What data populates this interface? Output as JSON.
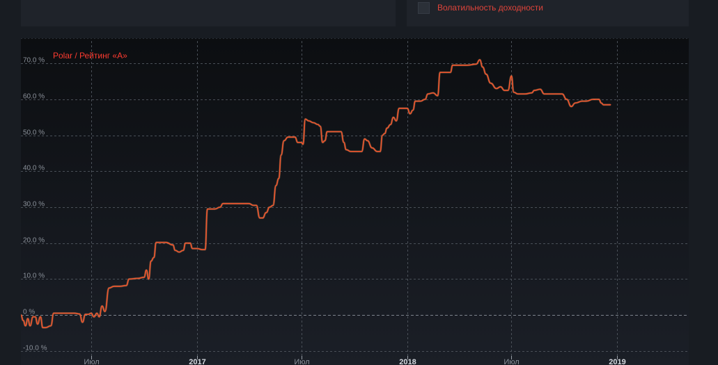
{
  "legend_panel": {
    "volatility_label": "Волатильность доходности"
  },
  "chart_data": {
    "type": "line",
    "title": "Polar / Рейтинг «А»",
    "xlabel": "",
    "ylabel": "",
    "ylim": [
      -11,
      77
    ],
    "y_ticks": [
      {
        "value": 70,
        "label": "70.0 %"
      },
      {
        "value": 60,
        "label": "60.0 %"
      },
      {
        "value": 50,
        "label": "50.0 %"
      },
      {
        "value": 40,
        "label": "40.0 %"
      },
      {
        "value": 30,
        "label": "30.0 %"
      },
      {
        "value": 20,
        "label": "20.0 %"
      },
      {
        "value": 10,
        "label": "10.0 %"
      },
      {
        "value": 0,
        "label": "0 %"
      },
      {
        "value": -10,
        "label": "-10.0 %"
      }
    ],
    "x_ticks": [
      {
        "date": "2016-07-01",
        "label": "Июл",
        "bold": false
      },
      {
        "date": "2017-01-01",
        "label": "2017",
        "bold": true
      },
      {
        "date": "2017-07-01",
        "label": "Июл",
        "bold": false
      },
      {
        "date": "2018-01-01",
        "label": "2018",
        "bold": true
      },
      {
        "date": "2018-07-01",
        "label": "Июл",
        "bold": false
      },
      {
        "date": "2019-01-01",
        "label": "2019",
        "bold": true
      }
    ],
    "x_range": [
      "2016-03-01",
      "2019-05-05"
    ],
    "grid": true,
    "colors": {
      "line": "#e8552e",
      "title": "#ff3b30",
      "grid": "#4a5058",
      "axis_text": "#8a9099"
    },
    "series": [
      {
        "name": "Polar / Рейтинг «А»",
        "points": [
          [
            "2016-03-01",
            0.0
          ],
          [
            "2016-03-05",
            -1.5
          ],
          [
            "2016-03-09",
            -3.0
          ],
          [
            "2016-03-13",
            -1.0
          ],
          [
            "2016-03-17",
            -3.0
          ],
          [
            "2016-03-22",
            -0.5
          ],
          [
            "2016-03-26",
            -0.5
          ],
          [
            "2016-03-30",
            -2.5
          ],
          [
            "2016-04-04",
            -0.5
          ],
          [
            "2016-04-08",
            -3.5
          ],
          [
            "2016-04-13",
            -3.5
          ],
          [
            "2016-04-22",
            -3.0
          ],
          [
            "2016-04-27",
            0.5
          ],
          [
            "2016-05-06",
            0.5
          ],
          [
            "2016-05-15",
            0.5
          ],
          [
            "2016-05-24",
            0.5
          ],
          [
            "2016-06-02",
            0.5
          ],
          [
            "2016-06-11",
            0.3
          ],
          [
            "2016-06-16",
            -2.0
          ],
          [
            "2016-06-21",
            0.2
          ],
          [
            "2016-06-26",
            0.2
          ],
          [
            "2016-07-01",
            0.5
          ],
          [
            "2016-07-06",
            -0.5
          ],
          [
            "2016-07-11",
            0.5
          ],
          [
            "2016-07-15",
            -0.5
          ],
          [
            "2016-07-20",
            2.5
          ],
          [
            "2016-07-25",
            1.0
          ],
          [
            "2016-08-01",
            7.5
          ],
          [
            "2016-08-10",
            8.0
          ],
          [
            "2016-08-20",
            8.0
          ],
          [
            "2016-08-31",
            8.2
          ],
          [
            "2016-09-05",
            10.0
          ],
          [
            "2016-09-20",
            10.2
          ],
          [
            "2016-10-01",
            10.5
          ],
          [
            "2016-10-05",
            12.5
          ],
          [
            "2016-10-09",
            10.0
          ],
          [
            "2016-10-13",
            15.0
          ],
          [
            "2016-10-18",
            16.0
          ],
          [
            "2016-10-22",
            20.2
          ],
          [
            "2016-11-08",
            20.2
          ],
          [
            "2016-11-20",
            19.5
          ],
          [
            "2016-11-24",
            18.0
          ],
          [
            "2016-12-01",
            17.5
          ],
          [
            "2016-12-08",
            18.0
          ],
          [
            "2016-12-12",
            20.0
          ],
          [
            "2016-12-20",
            20.0
          ],
          [
            "2016-12-24",
            18.5
          ],
          [
            "2017-01-01",
            18.5
          ],
          [
            "2017-01-10",
            18.2
          ],
          [
            "2017-01-15",
            18.2
          ],
          [
            "2017-01-19",
            29.5
          ],
          [
            "2017-02-01",
            29.5
          ],
          [
            "2017-02-10",
            30.0
          ],
          [
            "2017-02-15",
            31.0
          ],
          [
            "2017-03-10",
            31.0
          ],
          [
            "2017-04-01",
            31.0
          ],
          [
            "2017-04-09",
            30.5
          ],
          [
            "2017-04-14",
            30.5
          ],
          [
            "2017-04-20",
            27.0
          ],
          [
            "2017-04-25",
            27.0
          ],
          [
            "2017-05-01",
            28.5
          ],
          [
            "2017-05-07",
            30.0
          ],
          [
            "2017-05-13",
            30.5
          ],
          [
            "2017-05-18",
            36.0
          ],
          [
            "2017-05-23",
            38.0
          ],
          [
            "2017-05-27",
            44.5
          ],
          [
            "2017-06-01",
            48.5
          ],
          [
            "2017-06-08",
            49.5
          ],
          [
            "2017-06-20",
            49.5
          ],
          [
            "2017-06-25",
            48.0
          ],
          [
            "2017-07-01",
            48.0
          ],
          [
            "2017-07-04",
            47.5
          ],
          [
            "2017-07-08",
            54.5
          ],
          [
            "2017-07-14",
            54.0
          ],
          [
            "2017-07-22",
            53.5
          ],
          [
            "2017-07-30",
            53.0
          ],
          [
            "2017-08-03",
            52.5
          ],
          [
            "2017-08-07",
            48.0
          ],
          [
            "2017-08-11",
            48.5
          ],
          [
            "2017-08-15",
            51.0
          ],
          [
            "2017-08-25",
            51.0
          ],
          [
            "2017-09-03",
            51.0
          ],
          [
            "2017-09-08",
            51.0
          ],
          [
            "2017-09-13",
            48.0
          ],
          [
            "2017-09-17",
            46.0
          ],
          [
            "2017-09-25",
            45.5
          ],
          [
            "2017-10-05",
            45.5
          ],
          [
            "2017-10-14",
            45.5
          ],
          [
            "2017-10-19",
            49.0
          ],
          [
            "2017-10-24",
            48.5
          ],
          [
            "2017-11-01",
            46.5
          ],
          [
            "2017-11-10",
            45.5
          ],
          [
            "2017-11-15",
            45.5
          ],
          [
            "2017-11-19",
            50.0
          ],
          [
            "2017-11-23",
            50.5
          ],
          [
            "2017-11-27",
            52.0
          ],
          [
            "2017-12-03",
            53.0
          ],
          [
            "2017-12-08",
            55.0
          ],
          [
            "2017-12-13",
            54.0
          ],
          [
            "2017-12-18",
            57.5
          ],
          [
            "2017-12-26",
            57.5
          ],
          [
            "2018-01-01",
            57.5
          ],
          [
            "2018-01-06",
            56.0
          ],
          [
            "2018-01-11",
            57.0
          ],
          [
            "2018-01-15",
            59.5
          ],
          [
            "2018-01-24",
            59.5
          ],
          [
            "2018-02-01",
            60.0
          ],
          [
            "2018-02-06",
            61.5
          ],
          [
            "2018-02-15",
            61.8
          ],
          [
            "2018-02-23",
            61.0
          ],
          [
            "2018-02-27",
            67.5
          ],
          [
            "2018-03-10",
            67.5
          ],
          [
            "2018-03-17",
            67.5
          ],
          [
            "2018-03-21",
            69.5
          ],
          [
            "2018-04-01",
            69.5
          ],
          [
            "2018-04-15",
            69.5
          ],
          [
            "2018-05-01",
            69.8
          ],
          [
            "2018-05-07",
            71.0
          ],
          [
            "2018-05-12",
            69.0
          ],
          [
            "2018-05-18",
            67.0
          ],
          [
            "2018-05-26",
            64.5
          ],
          [
            "2018-06-05",
            63.0
          ],
          [
            "2018-06-12",
            63.5
          ],
          [
            "2018-06-19",
            62.5
          ],
          [
            "2018-06-25",
            62.5
          ],
          [
            "2018-07-01",
            66.5
          ],
          [
            "2018-07-05",
            62.0
          ],
          [
            "2018-07-12",
            61.5
          ],
          [
            "2018-07-25",
            61.5
          ],
          [
            "2018-08-05",
            61.8
          ],
          [
            "2018-08-10",
            62.5
          ],
          [
            "2018-08-20",
            62.8
          ],
          [
            "2018-08-27",
            61.5
          ],
          [
            "2018-09-10",
            61.5
          ],
          [
            "2018-09-27",
            61.5
          ],
          [
            "2018-10-05",
            60.0
          ],
          [
            "2018-10-13",
            58.0
          ],
          [
            "2018-10-20",
            59.0
          ],
          [
            "2018-11-01",
            59.5
          ],
          [
            "2018-11-08",
            59.5
          ],
          [
            "2018-11-20",
            60.0
          ],
          [
            "2018-11-30",
            60.0
          ],
          [
            "2018-12-04",
            59.0
          ],
          [
            "2018-12-08",
            58.5
          ],
          [
            "2018-12-20",
            58.5
          ]
        ]
      }
    ]
  }
}
